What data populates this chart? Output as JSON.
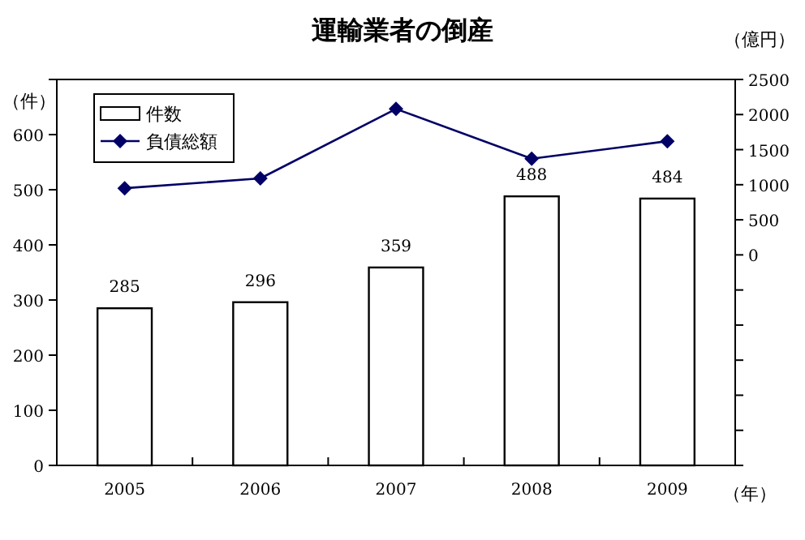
{
  "chart_data": {
    "type": "bar",
    "title": "運輸業者の倒産",
    "xlabel": "（年）",
    "ylabel": "（件）",
    "y2label": "（億円）",
    "categories": [
      "2005",
      "2006",
      "2007",
      "2008",
      "2009"
    ],
    "series": [
      {
        "name": "件数",
        "color": "#ffffff",
        "values": [
          285,
          296,
          359,
          488,
          484
        ],
        "value_labels": [
          "285",
          "296",
          "359",
          "488",
          "484"
        ]
      },
      {
        "name": "負債総額",
        "type": "line",
        "axis": "y2",
        "color": "#000066",
        "marker": "diamond",
        "values": [
          950,
          1090,
          2080,
          1370,
          1620
        ]
      }
    ],
    "ylim": [
      0,
      700
    ],
    "yticks": [
      0,
      100,
      200,
      300,
      400,
      500,
      600,
      {
        "value": 700,
        "label": null
      }
    ],
    "y2lim": [
      -3000,
      2500
    ],
    "y2ticks": [
      {
        "value": -3000,
        "label": null
      },
      {
        "value": -2500,
        "label": null
      },
      {
        "value": -2000,
        "label": null
      },
      {
        "value": -1500,
        "label": null
      },
      {
        "value": -1000,
        "label": null
      },
      {
        "value": -500,
        "label": null
      },
      0,
      500,
      1000,
      1500,
      2000,
      2500
    ],
    "legend": "top left"
  }
}
